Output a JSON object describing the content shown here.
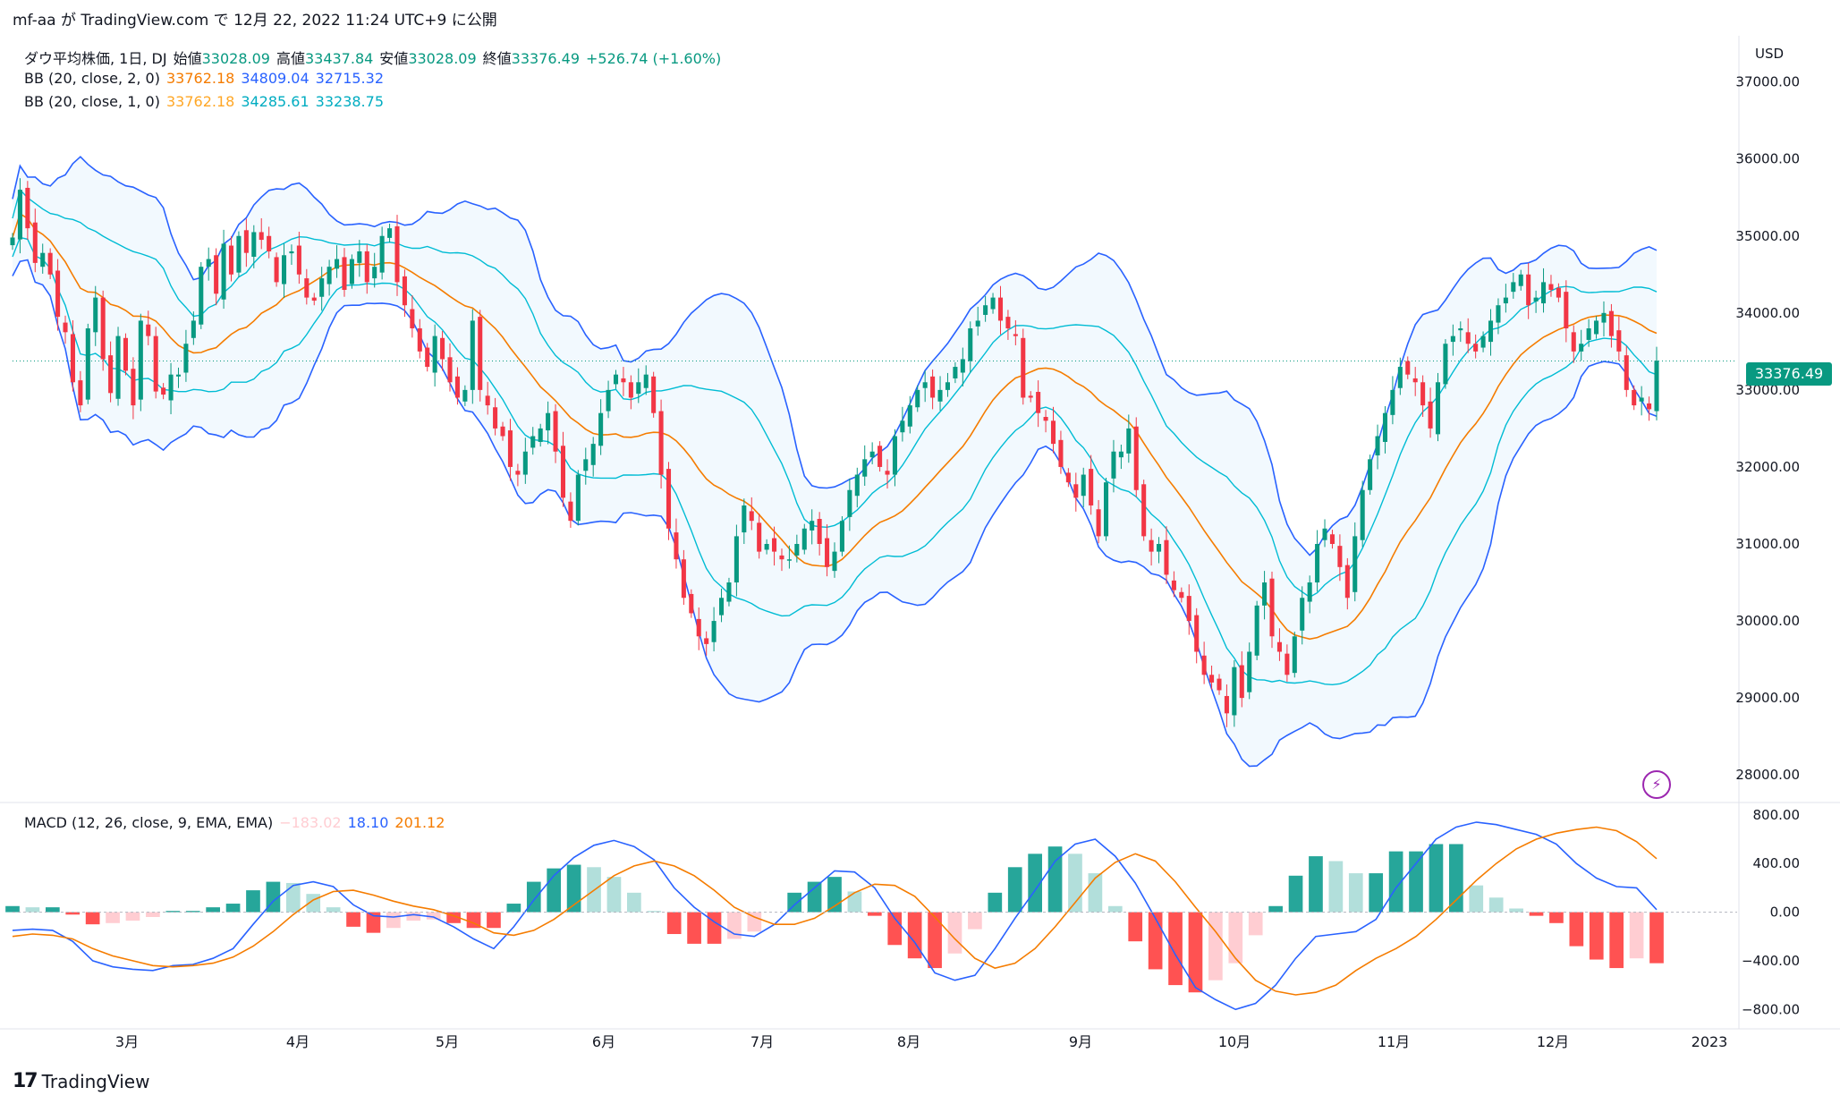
{
  "header": {
    "attribution": "mf-aa が TradingView.com で 12月 22, 2022 11:24 UTC+9 に公開"
  },
  "legend": {
    "symbol_line": {
      "name": "ダウ平均株価, 1日, DJ",
      "open_label": "始値",
      "open": "33028.09",
      "high_label": "高値",
      "high": "33437.84",
      "low_label": "安値",
      "low": "33028.09",
      "close_label": "終値",
      "close": "33376.49",
      "change": "+526.74 (+1.60%)"
    },
    "bb2": {
      "label": "BB (20, close, 2, 0)",
      "basis": "33762.18",
      "upper": "34809.04",
      "lower": "32715.32"
    },
    "bb1": {
      "label": "BB (20, close, 1, 0)",
      "basis": "33762.18",
      "upper": "34285.61",
      "lower": "33238.75"
    },
    "macd": {
      "label": "MACD (12, 26, close, 9, EMA, EMA)",
      "hist": "−183.02",
      "macd": "18.10",
      "signal": "201.12"
    }
  },
  "price_axis": {
    "currency": "USD",
    "last_price": "33376.49"
  },
  "footer": {
    "brand": "TradingView",
    "logo": "17"
  },
  "colors": {
    "up": "#089981",
    "down": "#f23645",
    "bb_outer": "#2962ff",
    "bb_inner": "#00bcd4",
    "basis": "#f57c00",
    "macd": "#2962ff",
    "signal": "#f57c00",
    "hist_up_strong": "#26a69a",
    "hist_up_weak": "#b2dfdb",
    "hist_down_strong": "#ff5252",
    "hist_down_weak": "#ffcdd2"
  },
  "chart_data": [
    {
      "type": "candlestick",
      "title": "ダウ平均株価, 1日, DJ",
      "ylim": [
        27700,
        37600
      ],
      "y_ticks": [
        "37000.00",
        "36000.00",
        "35000.00",
        "34000.00",
        "33000.00",
        "32000.00",
        "31000.00",
        "30000.00",
        "29000.00",
        "28000.00"
      ],
      "x_ticks": [
        "3月",
        "4月",
        "5月",
        "6月",
        "7月",
        "8月",
        "9月",
        "10月",
        "11月",
        "12月",
        "2023"
      ],
      "closes": [
        34980,
        35600,
        35100,
        34650,
        34780,
        34500,
        33950,
        33750,
        33100,
        32800,
        33800,
        34200,
        33400,
        32960,
        33700,
        33250,
        32800,
        33900,
        33700,
        32980,
        32940,
        33200,
        33200,
        33600,
        33900,
        34600,
        34700,
        34250,
        34900,
        34500,
        35000,
        34780,
        35050,
        34950,
        34800,
        34400,
        34750,
        34800,
        34500,
        34200,
        34160,
        34450,
        34600,
        34700,
        34300,
        34700,
        34800,
        34400,
        34600,
        35000,
        35100,
        34400,
        34100,
        33800,
        33500,
        33300,
        33700,
        33400,
        33100,
        32900,
        33000,
        33900,
        33000,
        32800,
        32500,
        32400,
        32000,
        31900,
        32200,
        32400,
        32500,
        32700,
        32200,
        31600,
        31300,
        31900,
        32100,
        32300,
        32700,
        33000,
        33200,
        33100,
        32900,
        33100,
        33200,
        32700,
        31900,
        31200,
        30800,
        30300,
        30100,
        29800,
        29700,
        30000,
        30300,
        30500,
        31100,
        31500,
        31300,
        30900,
        31000,
        30900,
        30800,
        30800,
        31000,
        31200,
        31300,
        31000,
        30700,
        30900,
        31300,
        31700,
        31900,
        32100,
        32200,
        32000,
        31900,
        32400,
        32600,
        32800,
        33000,
        33100,
        32900,
        33000,
        33100,
        33300,
        33400,
        33800,
        33900,
        34100,
        34200,
        33900,
        33800,
        33700,
        32900,
        32900,
        32700,
        32600,
        32300,
        32000,
        31800,
        31600,
        31900,
        31500,
        31100,
        31800,
        32200,
        32200,
        32500,
        31700,
        31100,
        30900,
        31000,
        30600,
        30400,
        30300,
        30000,
        29600,
        29300,
        29200,
        29100,
        28800,
        29400,
        29000,
        29600,
        30200,
        30500,
        29800,
        29600,
        29300,
        29800,
        30300,
        30500,
        31000,
        31200,
        31000,
        30700,
        30300,
        31100,
        31700,
        32100,
        32400,
        32700,
        33000,
        33300,
        33200,
        33100,
        32800,
        32500,
        33100,
        33600,
        33700,
        33800,
        33600,
        33500,
        33700,
        33900,
        34100,
        34200,
        34400,
        34500,
        34100,
        34200,
        34400,
        34300,
        34200,
        33800,
        33500,
        33600,
        33800,
        33900,
        34000,
        33700,
        33500,
        33000,
        32800,
        32900,
        32750,
        33380
      ]
    },
    {
      "type": "line",
      "title": "MACD (12, 26, close, 9, EMA, EMA)",
      "ylim": [
        -960,
        880
      ],
      "y_ticks": [
        "800.00",
        "400.00",
        "0.00",
        "−400.00",
        "−800.00"
      ],
      "series": [
        {
          "name": "MACD",
          "values": [
            -150,
            -140,
            -150,
            -240,
            -400,
            -450,
            -470,
            -480,
            -440,
            -430,
            -380,
            -300,
            -100,
            90,
            220,
            250,
            210,
            60,
            -30,
            -40,
            -20,
            -40,
            -120,
            -220,
            -300,
            -120,
            100,
            300,
            450,
            550,
            590,
            540,
            430,
            200,
            40,
            -80,
            -180,
            -200,
            -100,
            60,
            200,
            340,
            330,
            200,
            -50,
            -250,
            -500,
            -560,
            -520,
            -300,
            -50,
            180,
            420,
            560,
            600,
            460,
            240,
            -50,
            -350,
            -620,
            -720,
            -800,
            -750,
            -600,
            -380,
            -200,
            -180,
            -160,
            -60,
            200,
            400,
            600,
            700,
            740,
            720,
            680,
            640,
            560,
            400,
            280,
            210,
            200,
            20
          ]
        },
        {
          "name": "Signal",
          "values": [
            -200,
            -180,
            -190,
            -220,
            -300,
            -360,
            -400,
            -440,
            -450,
            -440,
            -420,
            -370,
            -280,
            -160,
            -20,
            100,
            170,
            180,
            140,
            90,
            50,
            20,
            -30,
            -90,
            -170,
            -190,
            -150,
            -60,
            60,
            180,
            300,
            380,
            420,
            380,
            300,
            180,
            40,
            -40,
            -100,
            -100,
            -50,
            50,
            160,
            230,
            220,
            130,
            -40,
            -220,
            -380,
            -460,
            -420,
            -300,
            -120,
            80,
            280,
            410,
            480,
            420,
            250,
            40,
            -160,
            -380,
            -560,
            -650,
            -680,
            -660,
            -600,
            -480,
            -380,
            -300,
            -200,
            -60,
            100,
            260,
            400,
            520,
            600,
            650,
            680,
            700,
            670,
            580,
            440
          ]
        }
      ],
      "histogram": [
        50,
        40,
        40,
        -20,
        -100,
        -90,
        -70,
        -40,
        10,
        10,
        40,
        70,
        180,
        250,
        240,
        150,
        40,
        -120,
        -170,
        -130,
        -70,
        -60,
        -90,
        -130,
        -130,
        70,
        250,
        360,
        390,
        370,
        290,
        160,
        10,
        -180,
        -260,
        -260,
        -220,
        -160,
        0,
        160,
        250,
        290,
        170,
        -30,
        -270,
        -380,
        -460,
        -340,
        -140,
        160,
        370,
        480,
        540,
        480,
        320,
        50,
        -240,
        -470,
        -600,
        -660,
        -560,
        -420,
        -190,
        50,
        300,
        460,
        420,
        320,
        320,
        500,
        500,
        560,
        560,
        220,
        120,
        30,
        -30,
        -90,
        -280,
        -390,
        -460,
        -380,
        -420
      ],
      "hist_count_note": ""
    }
  ]
}
